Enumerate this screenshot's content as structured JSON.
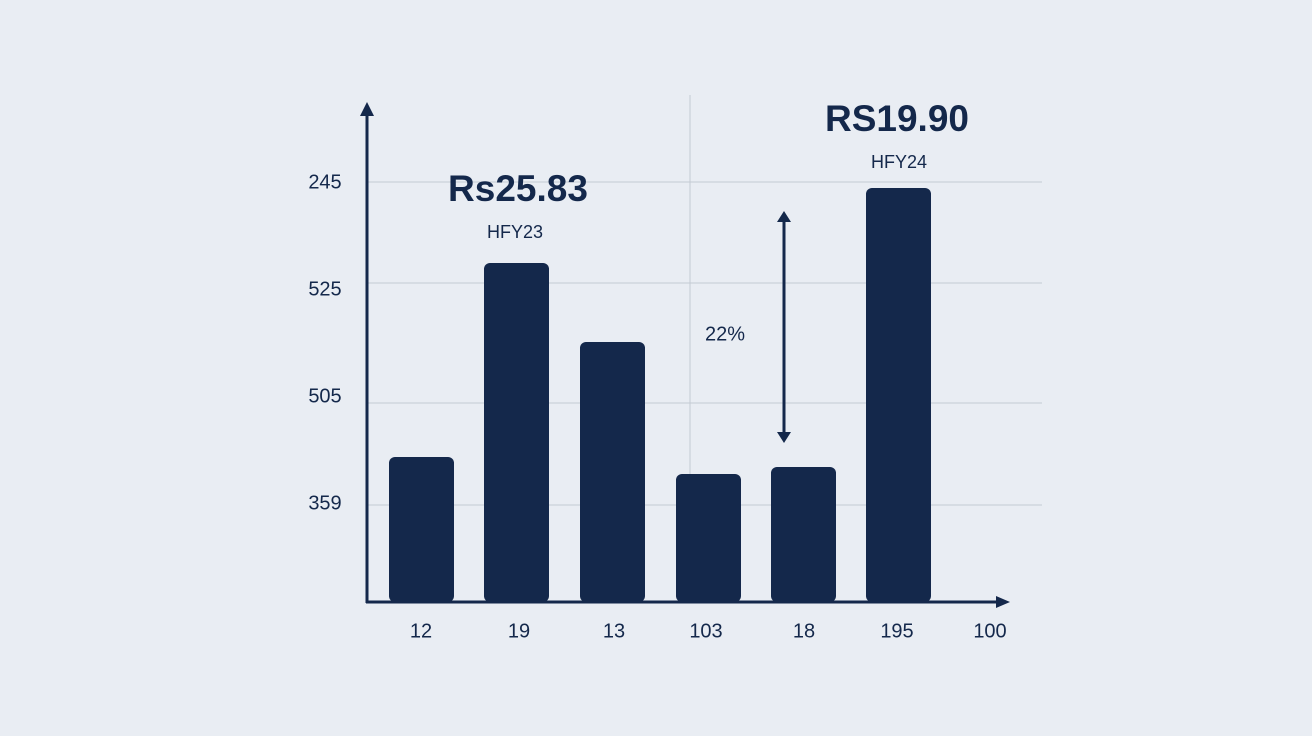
{
  "y_axis": {
    "labels": [
      "245",
      "525",
      "505",
      "359"
    ]
  },
  "x_axis": {
    "labels": [
      "12",
      "19",
      "13",
      "103",
      "18",
      "195",
      "100"
    ]
  },
  "annotations": {
    "left_value": "Rs25.83",
    "left_period": "HFY23",
    "right_value": "RS19.90",
    "right_period": "HFY24",
    "change": "22%"
  }
}
